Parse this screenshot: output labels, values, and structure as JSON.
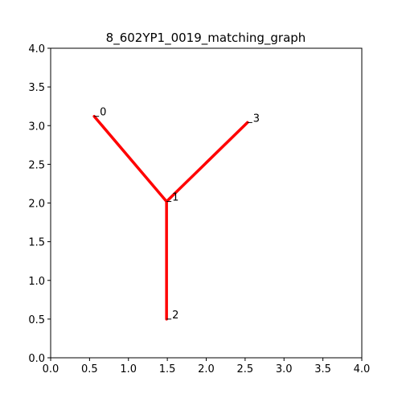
{
  "chart_data": {
    "type": "line",
    "title": "8_602YP1_0019_matching_graph",
    "xlabel": "",
    "ylabel": "",
    "xlim": [
      0.0,
      4.0
    ],
    "ylim": [
      0.0,
      4.0
    ],
    "xticks": [
      "0.0",
      "0.5",
      "1.0",
      "1.5",
      "2.0",
      "2.5",
      "3.0",
      "3.5",
      "4.0"
    ],
    "yticks": [
      "0.0",
      "0.5",
      "1.0",
      "1.5",
      "2.0",
      "2.5",
      "3.0",
      "3.5",
      "4.0"
    ],
    "grid": false,
    "nodes": [
      {
        "label": "0",
        "x": 0.56,
        "y": 3.12
      },
      {
        "label": "1",
        "x": 1.49,
        "y": 2.02
      },
      {
        "label": "2",
        "x": 1.49,
        "y": 0.5
      },
      {
        "label": "3",
        "x": 2.53,
        "y": 3.04
      }
    ],
    "edges": [
      {
        "from": "0",
        "to": "1"
      },
      {
        "from": "1",
        "to": "2"
      },
      {
        "from": "1",
        "to": "3"
      }
    ],
    "edge_color": "#ff0000"
  }
}
